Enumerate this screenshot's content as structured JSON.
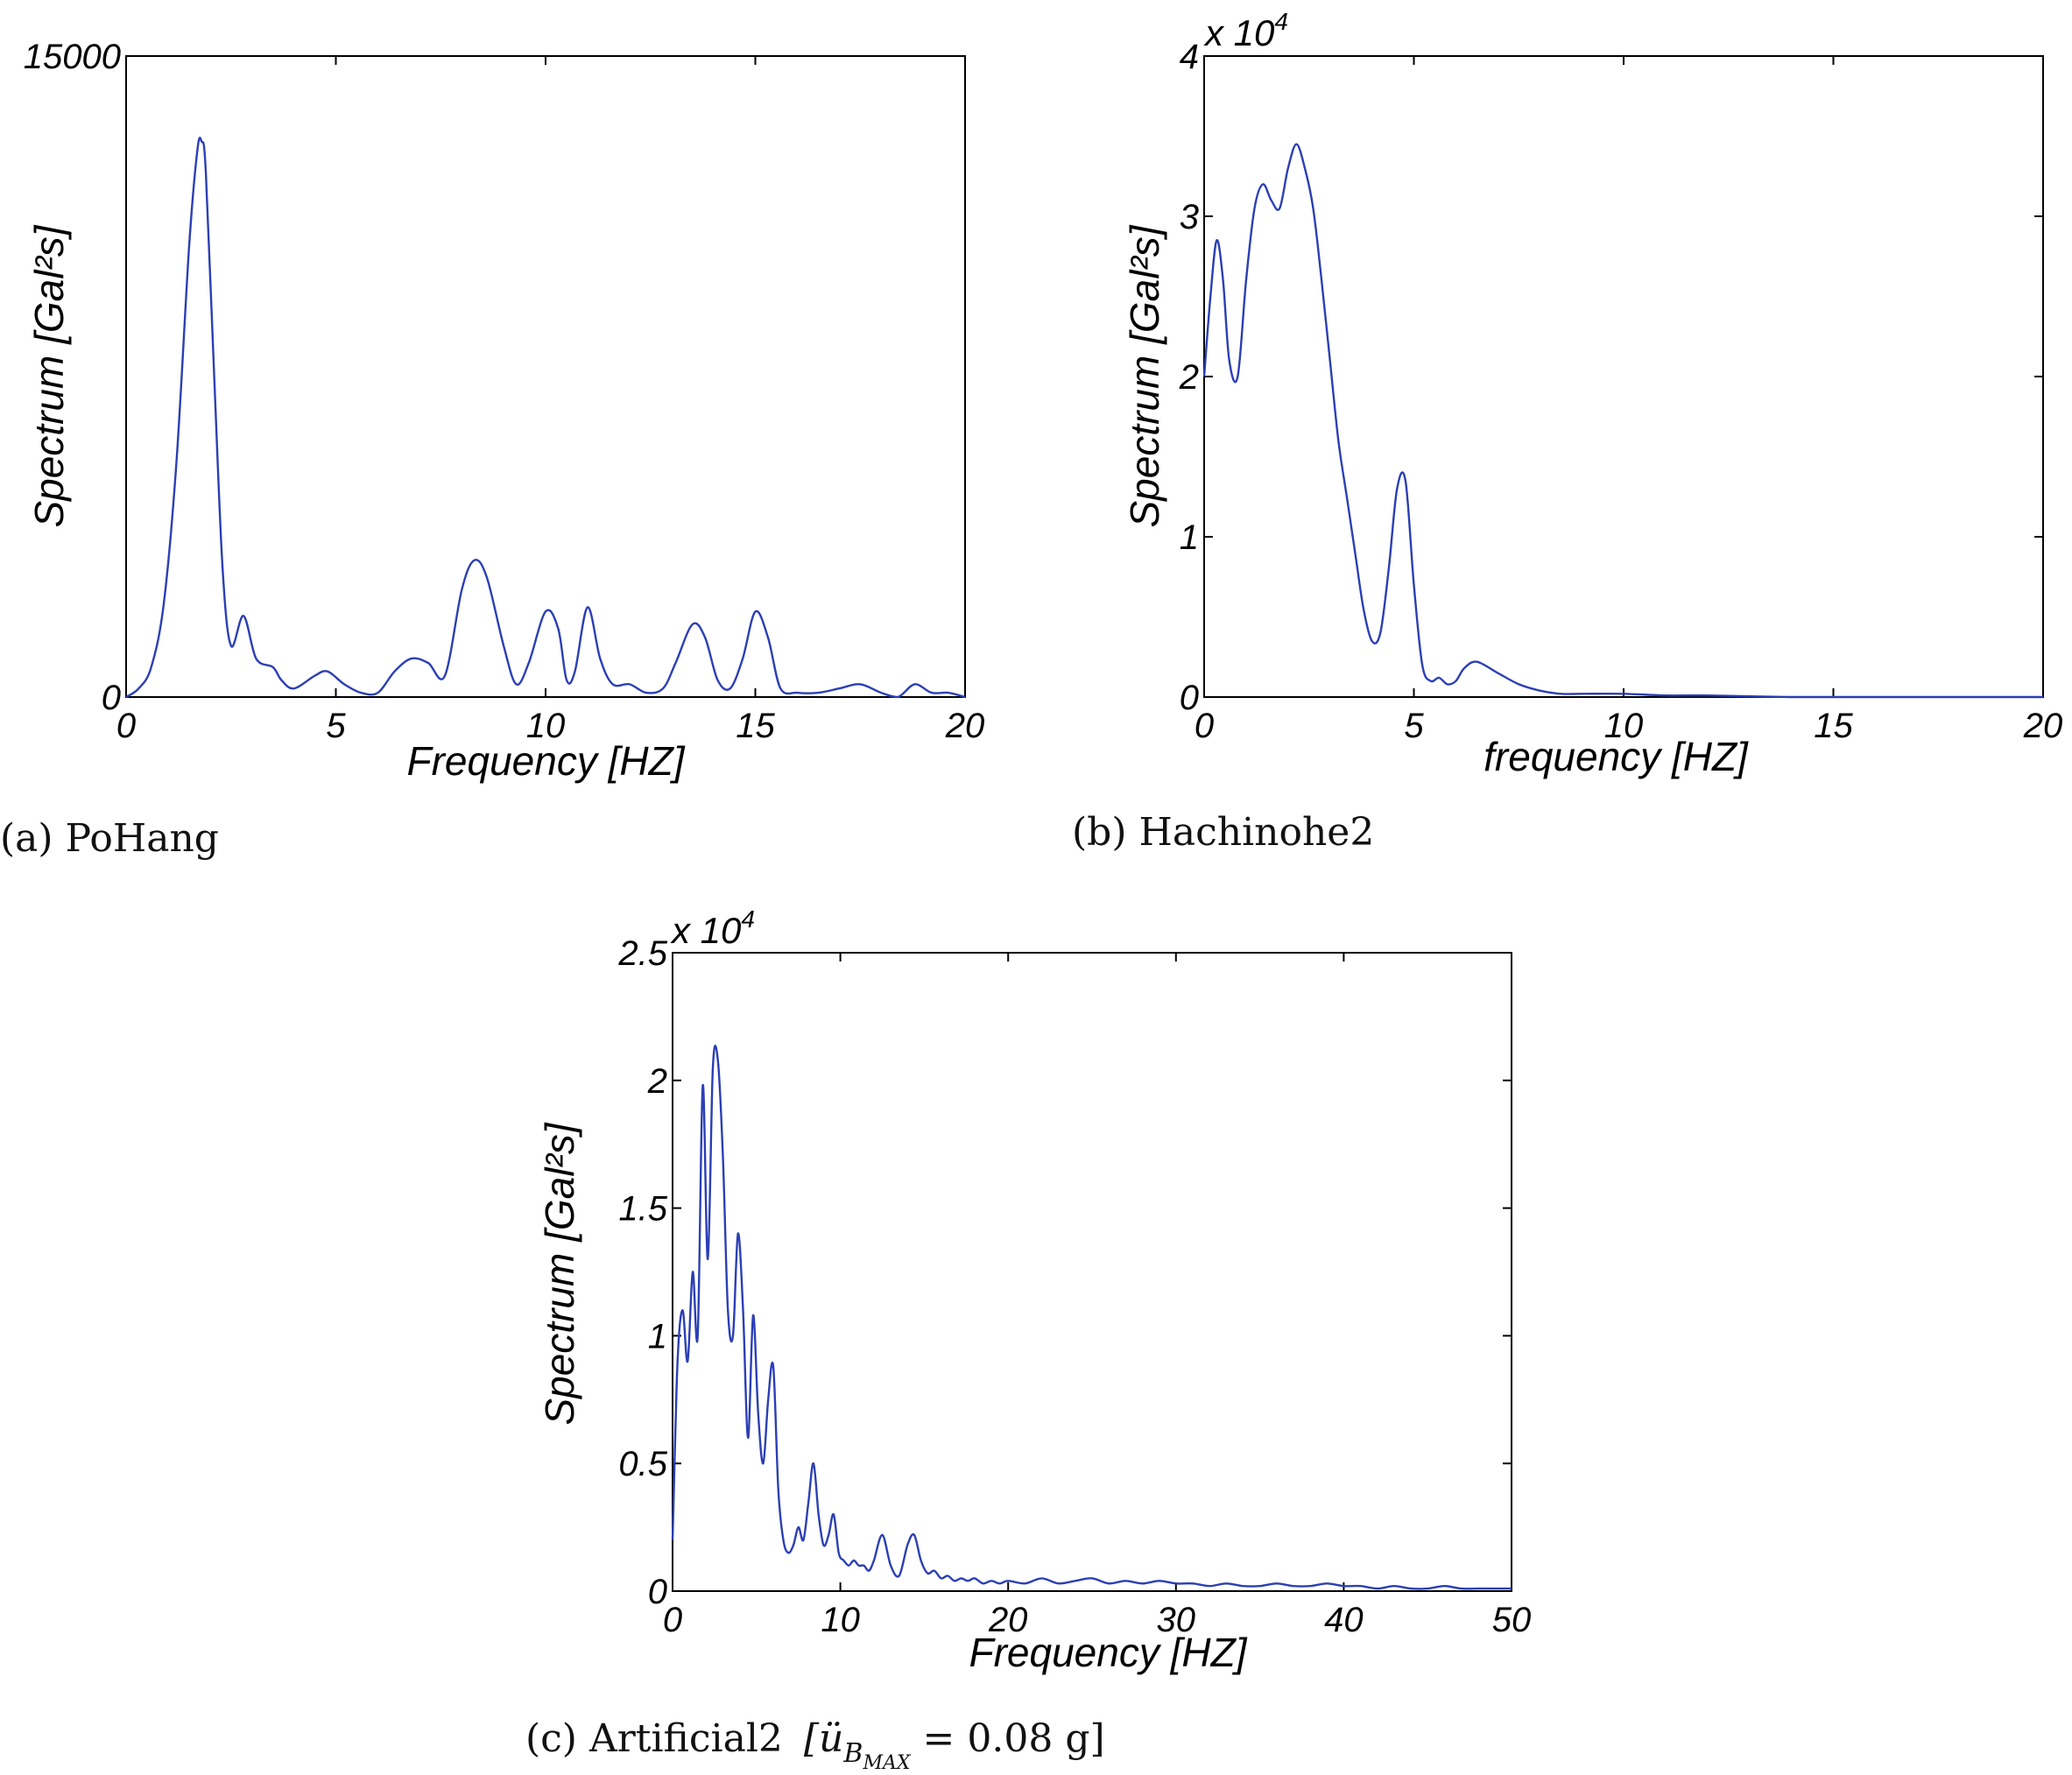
{
  "chart_data": [
    {
      "type": "line",
      "caption": "(a) PoHang",
      "xlabel": "Frequency [HZ]",
      "ylabel": "Spectrum [Gal²s]",
      "multiplier": "",
      "xlim": [
        0,
        20
      ],
      "ylim": [
        0,
        15000
      ],
      "xticks": [
        "0",
        "5",
        "10",
        "15",
        "20"
      ],
      "yticks": [
        "0",
        "15000"
      ],
      "series": [
        {
          "color": "#2b3fb5",
          "x": [
            0,
            0.3,
            0.6,
            0.9,
            1.2,
            1.5,
            1.7,
            1.8,
            1.9,
            2.1,
            2.3,
            2.5,
            2.8,
            3.1,
            3.5,
            3.7,
            4.0,
            4.5,
            4.8,
            5.2,
            5.6,
            6.0,
            6.4,
            6.8,
            7.2,
            7.6,
            8.0,
            8.3,
            8.6,
            9.0,
            9.3,
            9.6,
            10.0,
            10.3,
            10.5,
            10.7,
            11.0,
            11.3,
            11.6,
            12.0,
            12.4,
            12.8,
            13.1,
            13.5,
            13.8,
            14.1,
            14.4,
            14.7,
            15.0,
            15.3,
            15.6,
            16.0,
            16.5,
            17.0,
            17.5,
            18.0,
            18.4,
            18.8,
            19.2,
            19.6,
            20
          ],
          "y": [
            0,
            200,
            700,
            2200,
            5500,
            10500,
            12800,
            13000,
            12300,
            7500,
            3000,
            1200,
            1900,
            900,
            700,
            400,
            200,
            500,
            600,
            300,
            100,
            100,
            600,
            900,
            800,
            500,
            2500,
            3200,
            2800,
            1200,
            300,
            800,
            2000,
            1600,
            400,
            600,
            2100,
            900,
            300,
            300,
            100,
            200,
            800,
            1700,
            1400,
            400,
            200,
            900,
            2000,
            1400,
            200,
            100,
            100,
            200,
            300,
            100,
            0,
            300,
            100,
            100,
            0
          ]
        }
      ]
    },
    {
      "type": "line",
      "caption": "(b) Hachinohe2",
      "xlabel": "frequency [HZ]",
      "ylabel": "Spectrum [Gal²s]",
      "multiplier": "x 10",
      "multiplier_exp": "4",
      "xlim": [
        0,
        20
      ],
      "ylim": [
        0,
        4
      ],
      "xticks": [
        "0",
        "5",
        "10",
        "15",
        "20"
      ],
      "yticks": [
        "0",
        "1",
        "2",
        "3",
        "4"
      ],
      "series": [
        {
          "color": "#2b3fb5",
          "x": [
            0,
            0.15,
            0.3,
            0.45,
            0.6,
            0.8,
            1.0,
            1.2,
            1.4,
            1.6,
            1.8,
            2.0,
            2.2,
            2.4,
            2.6,
            2.8,
            3.0,
            3.2,
            3.4,
            3.6,
            3.8,
            4.0,
            4.2,
            4.4,
            4.6,
            4.8,
            5.0,
            5.2,
            5.4,
            5.6,
            5.8,
            6.0,
            6.2,
            6.5,
            7.0,
            7.5,
            8.0,
            8.5,
            9.0,
            10.0,
            11.0,
            12.0,
            14.0,
            16.0,
            18.0,
            20.0
          ],
          "y": [
            2.0,
            2.5,
            2.85,
            2.6,
            2.1,
            2.0,
            2.6,
            3.05,
            3.2,
            3.1,
            3.05,
            3.3,
            3.45,
            3.3,
            3.05,
            2.6,
            2.1,
            1.6,
            1.25,
            0.9,
            0.55,
            0.35,
            0.4,
            0.8,
            1.3,
            1.35,
            0.7,
            0.2,
            0.1,
            0.12,
            0.08,
            0.1,
            0.18,
            0.22,
            0.15,
            0.08,
            0.04,
            0.02,
            0.02,
            0.02,
            0.01,
            0.01,
            0.0,
            0.0,
            0.0,
            0.0
          ]
        }
      ]
    },
    {
      "type": "line",
      "caption": "(c) Artificial2",
      "caption_formula": "[ü",
      "caption_sub": "B",
      "caption_subsub": "MAX",
      "caption_tail": " = 0.08 g]",
      "xlabel": "Frequency [HZ]",
      "ylabel": "Spectrum [Gal²s]",
      "multiplier": "x 10",
      "multiplier_exp": "4",
      "xlim": [
        0,
        50
      ],
      "ylim": [
        0,
        2.5
      ],
      "xticks": [
        "0",
        "10",
        "20",
        "30",
        "40",
        "50"
      ],
      "yticks": [
        "0",
        "0.5",
        "1",
        "1.5",
        "2",
        "2.5"
      ],
      "series": [
        {
          "color": "#2b3fb5",
          "x": [
            0,
            0.3,
            0.6,
            0.9,
            1.2,
            1.5,
            1.8,
            2.1,
            2.4,
            2.7,
            3.0,
            3.3,
            3.6,
            3.9,
            4.2,
            4.5,
            4.8,
            5.1,
            5.4,
            5.7,
            6.0,
            6.3,
            6.6,
            6.9,
            7.2,
            7.5,
            7.8,
            8.1,
            8.4,
            8.7,
            9.0,
            9.3,
            9.6,
            9.9,
            10.2,
            10.5,
            10.8,
            11.1,
            11.4,
            11.7,
            12.0,
            12.5,
            13.0,
            13.5,
            14.0,
            14.4,
            14.8,
            15.2,
            15.6,
            16.0,
            16.4,
            16.8,
            17.2,
            17.6,
            18.0,
            18.5,
            19.0,
            19.5,
            20.0,
            21.0,
            22.0,
            23.0,
            24.0,
            25.0,
            26.0,
            27.0,
            28.0,
            29.0,
            30.0,
            31.0,
            32.0,
            33.0,
            34.0,
            35.0,
            36.0,
            37.0,
            38.0,
            39.0,
            40.0,
            41.0,
            42.0,
            43.0,
            44.0,
            45.0,
            46.0,
            47.0,
            48.0,
            49.0,
            50.0
          ],
          "y": [
            0.2,
            0.9,
            1.1,
            0.9,
            1.25,
            1.0,
            1.98,
            1.3,
            2.05,
            2.08,
            1.7,
            1.1,
            1.0,
            1.4,
            1.1,
            0.6,
            1.08,
            0.7,
            0.5,
            0.75,
            0.88,
            0.4,
            0.2,
            0.15,
            0.18,
            0.25,
            0.2,
            0.35,
            0.5,
            0.3,
            0.18,
            0.22,
            0.3,
            0.15,
            0.12,
            0.1,
            0.12,
            0.1,
            0.1,
            0.08,
            0.12,
            0.22,
            0.1,
            0.06,
            0.18,
            0.22,
            0.12,
            0.07,
            0.08,
            0.05,
            0.06,
            0.04,
            0.05,
            0.04,
            0.05,
            0.03,
            0.04,
            0.03,
            0.04,
            0.03,
            0.05,
            0.03,
            0.04,
            0.05,
            0.03,
            0.04,
            0.03,
            0.04,
            0.03,
            0.03,
            0.02,
            0.03,
            0.02,
            0.02,
            0.03,
            0.02,
            0.02,
            0.03,
            0.02,
            0.02,
            0.01,
            0.02,
            0.01,
            0.01,
            0.02,
            0.01,
            0.01,
            0.01,
            0.01
          ]
        }
      ]
    }
  ]
}
